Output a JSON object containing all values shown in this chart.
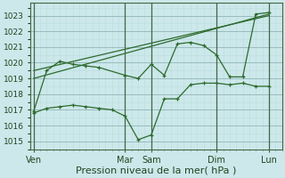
{
  "background_color": "#cce8ea",
  "grid_color_major": "#99bbbd",
  "grid_color_minor": "#bbddde",
  "line_color": "#2d6a2d",
  "marker_color": "#2d6a2d",
  "ylabel_ticks": [
    1015,
    1016,
    1017,
    1018,
    1019,
    1020,
    1021,
    1022,
    1023
  ],
  "ylim": [
    1014.5,
    1023.8
  ],
  "xlabel": "Pression niveau de la mer( hPa )",
  "xlabel_fontsize": 8,
  "day_labels": [
    "Ven",
    "Mar",
    "Sam",
    "Dim",
    "Lun"
  ],
  "day_x": [
    0,
    14,
    18,
    28,
    36
  ],
  "vline_x": [
    0,
    14,
    18,
    28,
    36
  ],
  "xlim": [
    -0.5,
    38
  ],
  "series_low": {
    "x": [
      0,
      2,
      4,
      6,
      8,
      10,
      12,
      14,
      16,
      18,
      20,
      22,
      24,
      26,
      28,
      30,
      32,
      34,
      36
    ],
    "y": [
      1016.8,
      1017.1,
      1017.2,
      1017.3,
      1017.2,
      1017.1,
      1017.0,
      1016.6,
      1015.1,
      1015.4,
      1017.7,
      1017.7,
      1018.6,
      1018.7,
      1018.7,
      1018.6,
      1018.7,
      1018.5,
      1018.5
    ]
  },
  "series_high": {
    "x": [
      0,
      2,
      4,
      6,
      8,
      10,
      14,
      16,
      18,
      20,
      22,
      24,
      26,
      28,
      30,
      32,
      34,
      36
    ],
    "y": [
      1016.9,
      1019.5,
      1020.1,
      1019.9,
      1019.8,
      1019.7,
      1019.2,
      1019.0,
      1019.9,
      1019.2,
      1021.2,
      1021.3,
      1021.1,
      1020.5,
      1019.1,
      1019.1,
      1023.1,
      1023.2
    ]
  },
  "trend1": {
    "x": [
      0,
      36
    ],
    "y": [
      1019.0,
      1023.1
    ]
  },
  "trend2": {
    "x": [
      0,
      36
    ],
    "y": [
      1019.5,
      1023.0
    ]
  }
}
